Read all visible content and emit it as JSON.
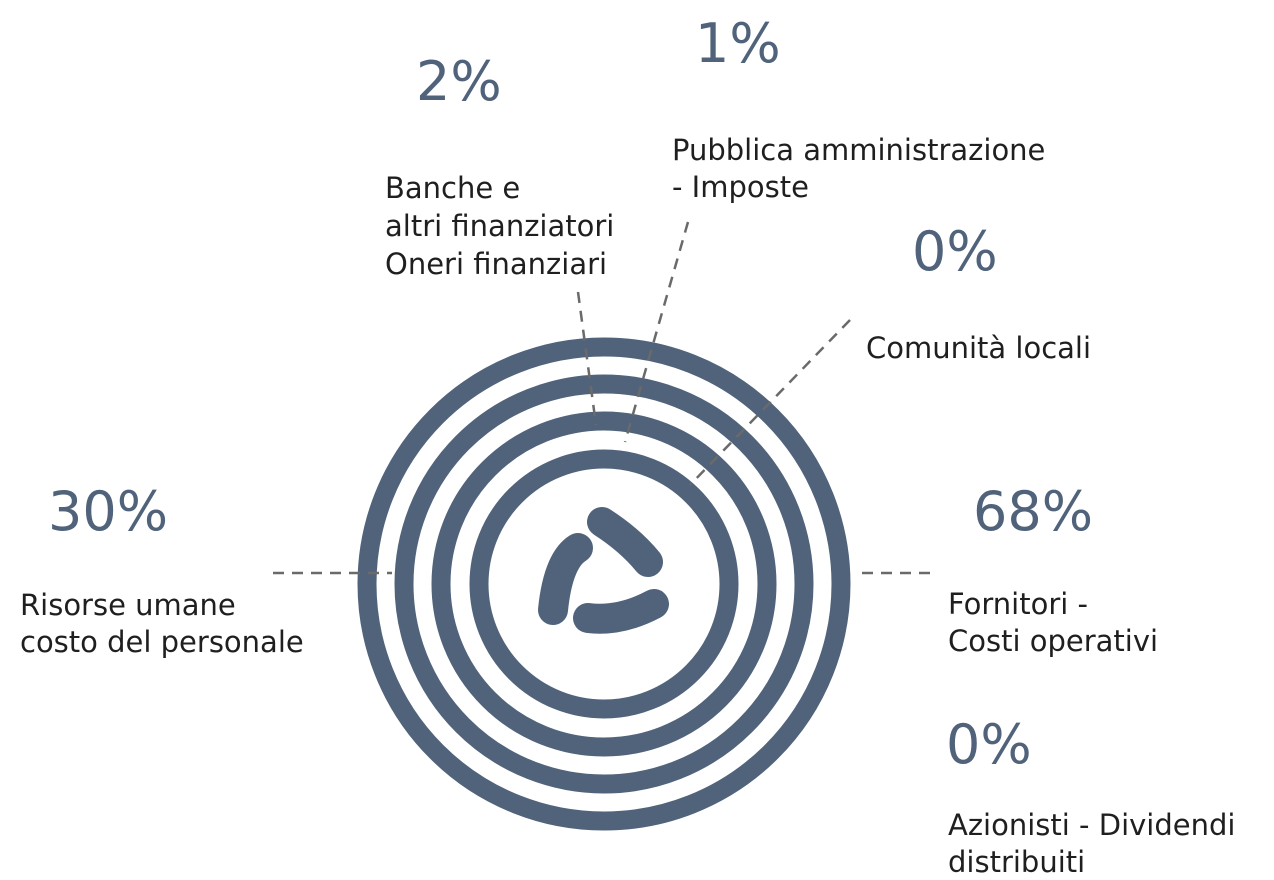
{
  "items": [
    {
      "value": "2%",
      "label": [
        "Banche e",
        "altri finanziatori",
        "Oneri finanziari"
      ]
    },
    {
      "value": "1%",
      "label": [
        "Pubblica amministrazione",
        "- Imposte"
      ]
    },
    {
      "value": "0%",
      "label": [
        "Comunità locali"
      ]
    },
    {
      "value": "30%",
      "label": [
        "Risorse umane",
        "costo del personale"
      ]
    },
    {
      "value": "68%",
      "label": [
        "Fornitori -",
        "Costi operativi"
      ]
    },
    {
      "value": "0%",
      "label": [
        "Azionisti - Dividendi",
        "distribuiti"
      ]
    }
  ]
}
